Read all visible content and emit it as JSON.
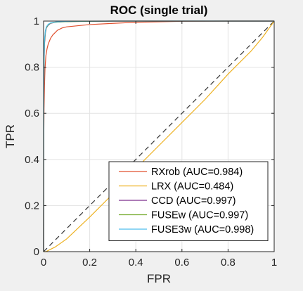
{
  "chart_data": {
    "type": "line",
    "title": "ROC (single trial)",
    "xlabel": "FPR",
    "ylabel": "TPR",
    "xlim": [
      0,
      1
    ],
    "ylim": [
      0,
      1
    ],
    "xticks": [
      0,
      0.2,
      0.4,
      0.6,
      0.8,
      1
    ],
    "yticks": [
      0,
      0.2,
      0.4,
      0.6,
      0.8,
      1
    ],
    "xtick_labels": [
      "0",
      "0.2",
      "0.4",
      "0.6",
      "0.8",
      "1"
    ],
    "ytick_labels": [
      "0",
      "0.2",
      "0.4",
      "0.6",
      "0.8",
      "1"
    ],
    "grid": true,
    "legend_position": "bottom-right",
    "chance_line": {
      "x": [
        0,
        1
      ],
      "y": [
        0,
        1
      ],
      "color": "#333333",
      "style": "dashed"
    },
    "series": [
      {
        "name": "RXrob (AUC=0.984)",
        "color": "#e0502e",
        "x": [
          0,
          0.0005,
          0.001,
          0.002,
          0.004,
          0.006,
          0.01,
          0.015,
          0.02,
          0.03,
          0.04,
          0.05,
          0.06,
          0.08,
          0.1,
          0.15,
          0.2,
          0.3,
          0.4,
          0.5,
          0.6,
          0.8,
          1
        ],
        "y": [
          0,
          0.3,
          0.5,
          0.62,
          0.72,
          0.79,
          0.85,
          0.88,
          0.9,
          0.925,
          0.94,
          0.95,
          0.96,
          0.97,
          0.975,
          0.98,
          0.985,
          0.99,
          0.995,
          0.997,
          0.999,
          1,
          1
        ]
      },
      {
        "name": "LRX (AUC=0.484)",
        "color": "#edb120",
        "x": [
          0,
          0.01,
          0.03,
          0.05,
          0.1,
          0.2,
          0.3,
          0.4,
          0.5,
          0.6,
          0.7,
          0.8,
          0.9,
          0.95,
          1
        ],
        "y": [
          0,
          0,
          0.01,
          0.02,
          0.055,
          0.15,
          0.25,
          0.36,
          0.46,
          0.56,
          0.66,
          0.77,
          0.87,
          0.93,
          1
        ]
      },
      {
        "name": "CCD (AUC=0.997)",
        "color": "#7e2f8e",
        "x": [
          0,
          0.0005,
          0.001,
          0.002,
          0.004,
          0.008,
          0.012,
          0.02,
          0.03,
          0.05,
          0.08,
          0.12,
          0.2,
          0.3,
          1
        ],
        "y": [
          0,
          0.4,
          0.65,
          0.8,
          0.9,
          0.95,
          0.97,
          0.982,
          0.99,
          0.995,
          0.997,
          0.998,
          0.999,
          1,
          1
        ]
      },
      {
        "name": "FUSEw (AUC=0.997)",
        "color": "#77ac30",
        "x": [
          0,
          0.0005,
          0.001,
          0.002,
          0.004,
          0.008,
          0.012,
          0.02,
          0.03,
          0.05,
          0.08,
          0.12,
          0.2,
          0.3,
          1
        ],
        "y": [
          0,
          0.42,
          0.67,
          0.81,
          0.91,
          0.955,
          0.972,
          0.984,
          0.991,
          0.995,
          0.997,
          0.998,
          0.999,
          1,
          1
        ]
      },
      {
        "name": "FUSE3w (AUC=0.998)",
        "color": "#4dbeee",
        "x": [
          0,
          0.0005,
          0.001,
          0.002,
          0.004,
          0.008,
          0.012,
          0.02,
          0.03,
          0.05,
          0.08,
          0.12,
          0.2,
          0.3,
          1
        ],
        "y": [
          0,
          0.45,
          0.7,
          0.83,
          0.92,
          0.96,
          0.975,
          0.986,
          0.992,
          0.996,
          0.998,
          0.999,
          0.9995,
          1,
          1
        ]
      }
    ]
  }
}
